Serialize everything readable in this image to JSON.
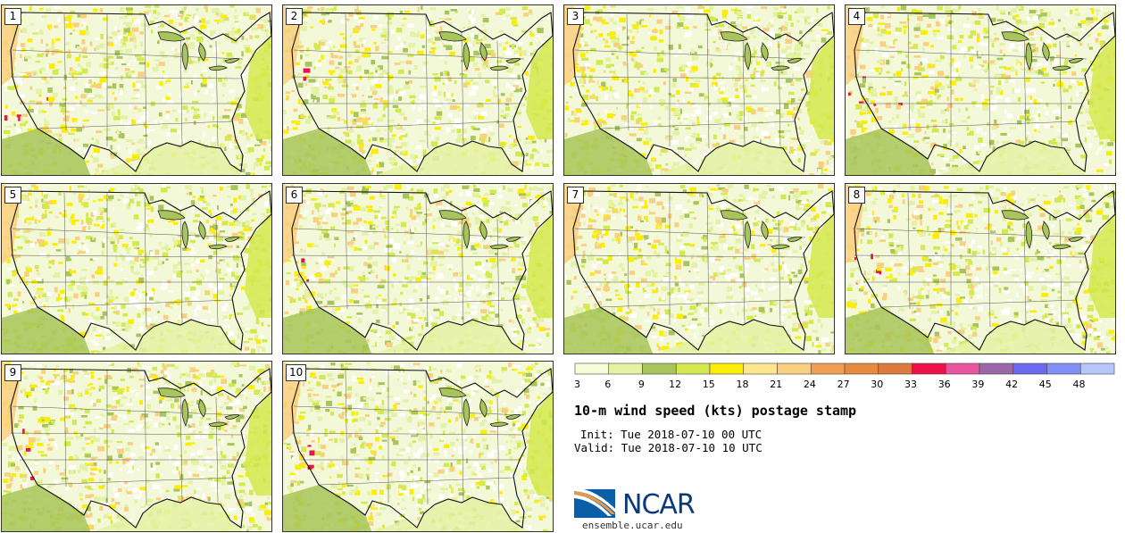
{
  "panels": [
    {
      "label": "1"
    },
    {
      "label": "2"
    },
    {
      "label": "3"
    },
    {
      "label": "4"
    },
    {
      "label": "5"
    },
    {
      "label": "6"
    },
    {
      "label": "7"
    },
    {
      "label": "8"
    },
    {
      "label": "9"
    },
    {
      "label": "10"
    }
  ],
  "colorbar": {
    "ticks": [
      "3",
      "6",
      "9",
      "12",
      "15",
      "18",
      "21",
      "24",
      "27",
      "30",
      "33",
      "36",
      "39",
      "42",
      "45",
      "48"
    ],
    "colors": [
      "#f7fbd8",
      "#e4f2a6",
      "#a7c55a",
      "#d4e94e",
      "#fbee04",
      "#fde68c",
      "#f9cf80",
      "#ef9e52",
      "#e68a3d",
      "#dc7a3e",
      "#ed1149",
      "#e6559d",
      "#9a68aa",
      "#6a6af0",
      "#7f8ff5",
      "#b5c7fa"
    ]
  },
  "title": "10-m wind speed (kts) postage stamp",
  "init": "Init: Tue 2018-07-10 00 UTC",
  "valid": "Valid: Tue 2018-07-10 10 UTC",
  "logo": {
    "text": "NCAR",
    "url": "ensemble.ucar.edu",
    "colors": {
      "blue": "#0b5fa8",
      "orange": "#e59a4a"
    }
  },
  "map_colors": {
    "land_base": "#f3f8d8",
    "low": "#e4f2a6",
    "mid": "#a7c55a",
    "yellow": "#d4e94e",
    "bright": "#fbee04",
    "orange": "#f9cf80",
    "red": "#ed1149",
    "calm": "#ffffff"
  }
}
